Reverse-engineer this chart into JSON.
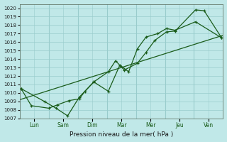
{
  "background_color": "#c0e8e8",
  "grid_color": "#99cccc",
  "line_color": "#1a5c1a",
  "xlabel": "Pression niveau de la mer( hPa )",
  "ylim": [
    1007,
    1020.5
  ],
  "xlim": [
    0,
    7.0
  ],
  "yticks": [
    1007,
    1008,
    1009,
    1010,
    1011,
    1012,
    1013,
    1014,
    1015,
    1016,
    1017,
    1018,
    1019,
    1020
  ],
  "x_labels": [
    "Lun",
    "Sam",
    "Dim",
    "Mar",
    "Mer",
    "Jeu",
    "Ven"
  ],
  "x_tick_pos": [
    0.5,
    1.5,
    2.5,
    3.5,
    4.5,
    5.5,
    6.5
  ],
  "x_vlines": [
    1.0,
    2.0,
    3.0,
    4.0,
    5.0,
    6.0
  ],
  "trend_line": {
    "x": [
      0.0,
      7.0
    ],
    "y": [
      1009.2,
      1016.8
    ]
  },
  "line1_x": [
    0.05,
    0.4,
    1.0,
    1.3,
    1.7,
    2.05,
    2.25,
    2.55,
    3.05,
    3.3,
    3.6,
    4.05,
    4.35,
    4.65,
    5.05,
    5.35,
    6.05,
    6.35,
    6.95
  ],
  "line1_y": [
    1010.5,
    1008.5,
    1008.2,
    1008.6,
    1009.1,
    1009.3,
    1010.2,
    1011.3,
    1012.5,
    1013.8,
    1012.7,
    1013.5,
    1014.8,
    1016.2,
    1017.2,
    1017.3,
    1019.8,
    1019.7,
    1016.5
  ],
  "line2_x": [
    0.05,
    0.85,
    1.25,
    1.65,
    2.05,
    2.55,
    3.05,
    3.45,
    3.75,
    4.05,
    4.35,
    4.75,
    5.05,
    5.35,
    6.05,
    6.95
  ],
  "line2_y": [
    1010.5,
    1009.0,
    1008.2,
    1007.3,
    1009.5,
    1011.3,
    1010.2,
    1013.3,
    1012.5,
    1015.2,
    1016.6,
    1017.0,
    1017.6,
    1017.4,
    1018.4,
    1016.5
  ]
}
